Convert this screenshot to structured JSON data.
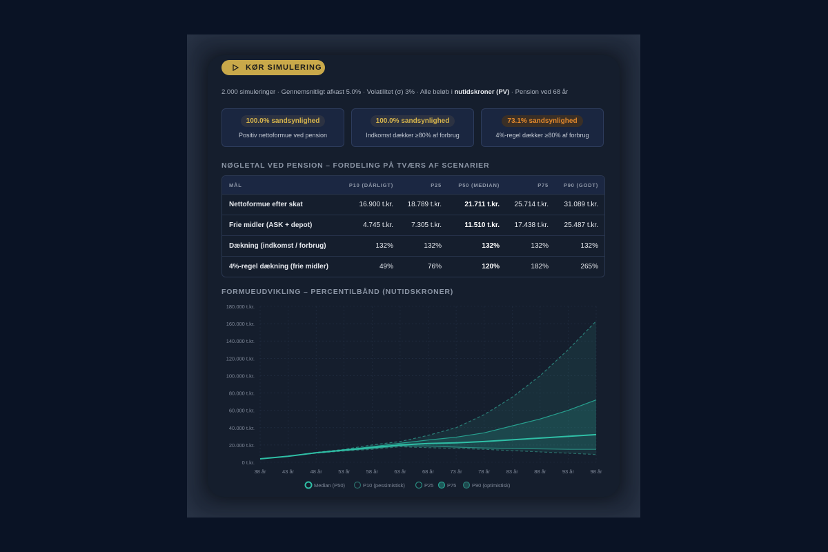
{
  "button": {
    "label": "KØR SIMULERING"
  },
  "subtitle": [
    "2.000 simuleringer · Gennemsnitligt afkast 5.0% · Volatilitet (σ) 3% · Alle beløb i ",
    "nutidskroner (PV)",
    " · Pension ved 68 år"
  ],
  "cards": [
    {
      "badge": "100.0% sandsynlighed",
      "text": "Positiv nettoformue ved pension"
    },
    {
      "badge": "100.0% sandsynlighed",
      "text": "Indkomst dækker ≥80% af forbrug"
    },
    {
      "badge": "73.1% sandsynlighed",
      "text": "4%-regel dækker ≥80% af forbrug"
    }
  ],
  "section_title": "NØGLETAL VED PENSION – FORDELING PÅ TVÆRS AF SCENARIER",
  "table": {
    "header": [
      "MÅL",
      "P10 (DÅRLIGT)",
      "P25",
      "P50 (MEDIAN)",
      "P75",
      "P90 (GODT)"
    ],
    "rows": [
      [
        "Nettoformue efter skat",
        "16.900 t.kr.",
        "18.789 t.kr.",
        "21.711 t.kr.",
        "25.714 t.kr.",
        "31.089 t.kr."
      ],
      [
        "Frie midler (ASK + depot)",
        "4.745 t.kr.",
        "7.305 t.kr.",
        "11.510 t.kr.",
        "17.438 t.kr.",
        "25.487 t.kr."
      ],
      [
        "Dækning (indkomst / forbrug)",
        "132%",
        "132%",
        "132%",
        "132%",
        "132%"
      ],
      [
        "4%-regel dækning (frie midler)",
        "49%",
        "76%",
        "120%",
        "182%",
        "265%"
      ]
    ]
  },
  "chart_data": {
    "type": "line",
    "title": "FORMUEUDVIKLING – PERCENTILBÅND (NUTIDSKRONER)",
    "x": [
      38,
      43,
      48,
      53,
      58,
      63,
      68,
      73,
      78,
      83,
      88,
      93,
      98
    ],
    "series": [
      {
        "name": "Median (P50)",
        "color": "#2fbfa6",
        "values": [
          4000,
          7000,
          11000,
          14000,
          17000,
          20000,
          21711,
          22500,
          24000,
          26000,
          28000,
          30000,
          32000
        ]
      },
      {
        "name": "P10 (pessimistisk)",
        "color": "#2a6e6a",
        "dashed": true,
        "values": [
          4000,
          7000,
          10500,
          13000,
          15000,
          18000,
          16900,
          16000,
          15000,
          13500,
          12000,
          10500,
          9000
        ]
      },
      {
        "name": "P25",
        "color": "#2a8c80",
        "values": [
          4000,
          7000,
          10800,
          13500,
          16000,
          19000,
          18789,
          17500,
          16500,
          16000,
          15500,
          15000,
          15000
        ]
      },
      {
        "name": "P75",
        "color": "#27a08f",
        "values": [
          4000,
          7000,
          11200,
          14500,
          18000,
          22000,
          25714,
          29000,
          34000,
          42000,
          50000,
          60000,
          72000
        ]
      },
      {
        "name": "P90 (optimistisk)",
        "color": "#2a7f78",
        "dashed": true,
        "values": [
          4000,
          7000,
          11500,
          15000,
          20000,
          24000,
          31089,
          40000,
          55000,
          75000,
          100000,
          130000,
          163000
        ]
      }
    ],
    "xlim": [
      38,
      98
    ],
    "xticks": [
      {
        "value": 38,
        "label": "38 år"
      },
      {
        "value": 43,
        "label": "43 år"
      },
      {
        "value": 48,
        "label": "48 år"
      },
      {
        "value": 53,
        "label": "53 år"
      },
      {
        "value": 58,
        "label": "58 år"
      },
      {
        "value": 63,
        "label": "63 år"
      },
      {
        "value": 68,
        "label": "68 år"
      },
      {
        "value": 73,
        "label": "73 år"
      },
      {
        "value": 78,
        "label": "78 år"
      },
      {
        "value": 83,
        "label": "83 år"
      },
      {
        "value": 88,
        "label": "88 år"
      },
      {
        "value": 93,
        "label": "93 år"
      },
      {
        "value": 98,
        "label": "98 år"
      }
    ],
    "ylim": [
      0,
      180000
    ],
    "yticks": [
      {
        "value": 0,
        "label": "0 t.kr."
      },
      {
        "value": 20000,
        "label": "20.000 t.kr."
      },
      {
        "value": 40000,
        "label": "40.000 t.kr."
      },
      {
        "value": 60000,
        "label": "60.000 t.kr."
      },
      {
        "value": 80000,
        "label": "80.000 t.kr."
      },
      {
        "value": 100000,
        "label": "100.000 t.kr."
      },
      {
        "value": 120000,
        "label": "120.000 t.kr."
      },
      {
        "value": 140000,
        "label": "140.000 t.kr."
      },
      {
        "value": 160000,
        "label": "160.000 t.kr."
      },
      {
        "value": 180000,
        "label": "180.000 t.kr."
      }
    ],
    "grid": true,
    "legend": "bottom"
  }
}
